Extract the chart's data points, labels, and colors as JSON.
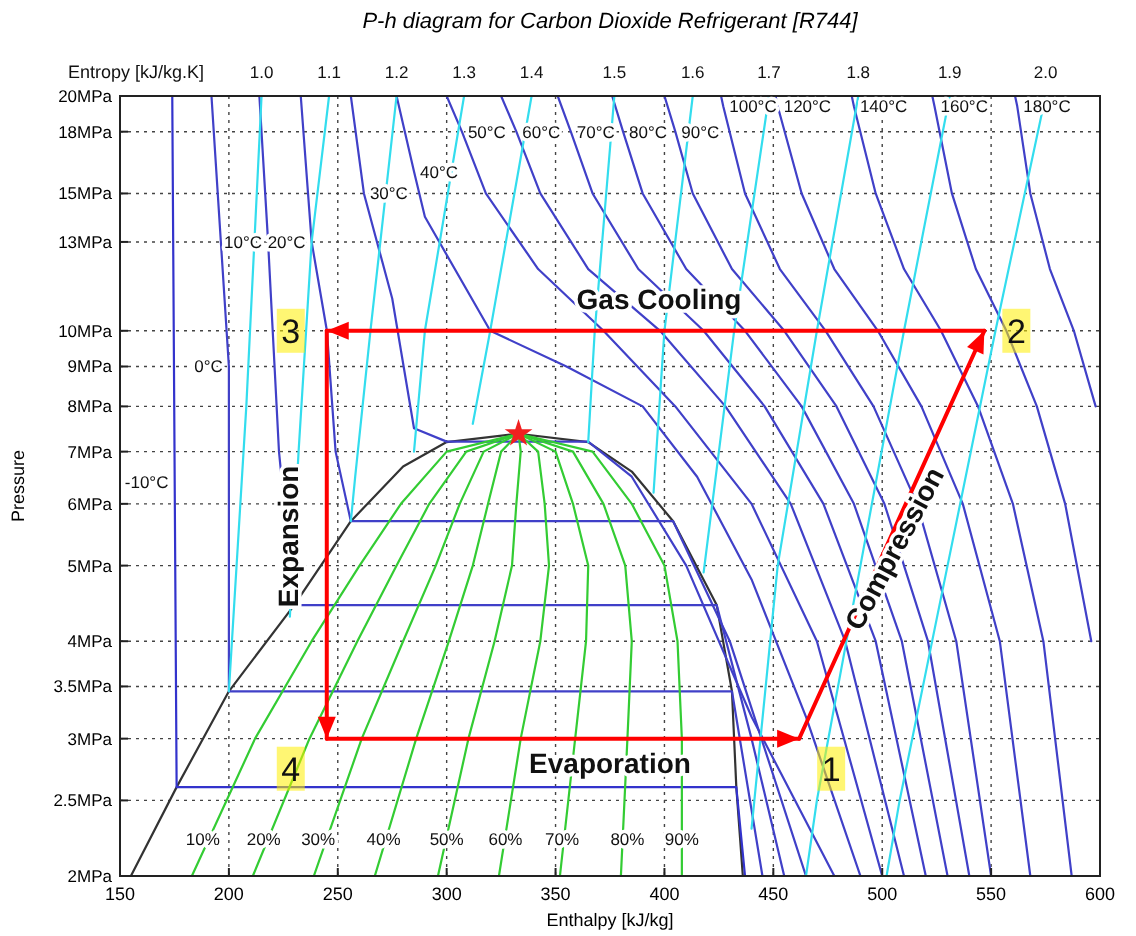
{
  "chart_data": {
    "type": "line",
    "title": "P-h diagram for Carbon Dioxide Refrigerant [R744]",
    "xlabel": "Enthalpy [kJ/kg]",
    "ylabel": "Pressure",
    "xlim": [
      150,
      600
    ],
    "xticks": [
      150,
      200,
      250,
      300,
      350,
      400,
      450,
      500,
      550,
      600
    ],
    "ylim": [
      2,
      20
    ],
    "log": "y",
    "grid": true,
    "yticks": [
      {
        "value": 2,
        "label": "2MPa"
      },
      {
        "value": 2.5,
        "label": "2.5MPa"
      },
      {
        "value": 3,
        "label": "3MPa"
      },
      {
        "value": 3.5,
        "label": "3.5MPa"
      },
      {
        "value": 4,
        "label": "4MPa"
      },
      {
        "value": 5,
        "label": "5MPa"
      },
      {
        "value": 6,
        "label": "6MPa"
      },
      {
        "value": 7,
        "label": "7MPa"
      },
      {
        "value": 8,
        "label": "8MPa"
      },
      {
        "value": 9,
        "label": "9MPa"
      },
      {
        "value": 10,
        "label": "10MPa"
      },
      {
        "value": 13,
        "label": "13MPa"
      },
      {
        "value": 15,
        "label": "15MPa"
      },
      {
        "value": 18,
        "label": "18MPa"
      },
      {
        "value": 20,
        "label": "20MPa"
      }
    ],
    "series": [
      {
        "color": "#333333",
        "x": [
          155,
          176,
          200,
          230,
          256,
          280,
          300,
          333,
          365,
          385,
          404,
          424,
          431,
          433,
          436
        ],
        "values": [
          2,
          2.6,
          3.45,
          4.45,
          5.7,
          6.7,
          7.2,
          7.38,
          7.2,
          6.6,
          5.7,
          4.45,
          3.45,
          2.6,
          2
        ]
      },
      {
        "color": "#3333cc",
        "x": [
          174,
          176,
          433,
          437
        ],
        "values": [
          20,
          2.6,
          2.6,
          2
        ]
      },
      {
        "color": "#4040c8",
        "x": [
          192,
          200,
          200,
          431,
          445
        ],
        "values": [
          20,
          9,
          3.45,
          3.45,
          2
        ]
      },
      {
        "color": "#4040c8",
        "x": [
          214,
          218,
          223,
          230,
          424,
          440,
          455
        ],
        "values": [
          20,
          13,
          7,
          4.45,
          4.45,
          3,
          2
        ]
      },
      {
        "color": "#4040c8",
        "x": [
          233,
          238,
          245,
          249,
          256,
          404,
          430,
          465
        ],
        "values": [
          20,
          13,
          10,
          7,
          5.7,
          5.7,
          4,
          2
        ]
      },
      {
        "color": "#4040c8",
        "x": [
          256,
          262,
          275,
          285,
          300,
          365,
          385,
          410,
          440,
          478
        ],
        "values": [
          20,
          15,
          11,
          7.5,
          7.21,
          7.21,
          6.5,
          5,
          3.2,
          2
        ]
      },
      {
        "color": "#4040c8",
        "x": [
          277,
          285,
          290,
          320,
          355,
          390,
          415,
          440,
          465,
          490
        ],
        "values": [
          20,
          16,
          14,
          10,
          9,
          8,
          6.5,
          4.8,
          3.2,
          2
        ]
      },
      {
        "color": "#4040c8",
        "x": [
          300,
          307,
          318,
          342,
          372,
          405,
          440,
          470,
          500
        ],
        "values": [
          20,
          18,
          15,
          12,
          10,
          8,
          6,
          4,
          2
        ]
      },
      {
        "color": "#4040c8",
        "x": [
          325,
          332,
          343,
          365,
          398,
          428,
          458,
          483,
          510
        ],
        "values": [
          20,
          18,
          15,
          12,
          10,
          8,
          6,
          4,
          2
        ]
      },
      {
        "color": "#4040c8",
        "x": [
          351,
          357,
          367,
          388,
          418,
          446,
          473,
          497,
          520
        ],
        "values": [
          20,
          18,
          15,
          12,
          10,
          8,
          6,
          4,
          2
        ]
      },
      {
        "color": "#4040c8",
        "x": [
          376,
          381,
          390,
          410,
          437,
          463,
          487,
          509,
          530
        ],
        "values": [
          20,
          18,
          15,
          12,
          10,
          8,
          6,
          4,
          2
        ]
      },
      {
        "color": "#4040c8",
        "x": [
          400,
          405,
          413,
          431,
          455,
          479,
          501,
          521,
          540
        ],
        "values": [
          20,
          18,
          15,
          12,
          10,
          8,
          6,
          4,
          2
        ]
      },
      {
        "color": "#4040c8",
        "x": [
          426,
          427,
          437,
          453,
          474,
          496,
          516,
          534,
          550
        ],
        "values": [
          20,
          19.4,
          15,
          12,
          10,
          8,
          6,
          4,
          2
        ]
      },
      {
        "color": "#4040c8",
        "x": [
          451,
          452,
          463,
          478,
          498,
          518,
          537,
          554,
          568
        ],
        "values": [
          20,
          19.4,
          15,
          12,
          10,
          8,
          6,
          4,
          2
        ]
      },
      {
        "color": "#4040c8",
        "x": [
          486,
          487,
          497,
          510,
          527,
          544,
          560,
          574,
          587
        ],
        "values": [
          20,
          19.4,
          15,
          12,
          10,
          8,
          6,
          4,
          2
        ]
      },
      {
        "color": "#4040c8",
        "x": [
          523,
          524,
          532,
          543,
          557,
          571,
          584,
          596
        ],
        "values": [
          20,
          19.4,
          15,
          12,
          10,
          8,
          6,
          4
        ]
      },
      {
        "color": "#4040c8",
        "x": [
          561,
          562,
          568,
          577,
          588,
          598
        ],
        "values": [
          20,
          19.4,
          15,
          12,
          10,
          8
        ]
      },
      {
        "color": "#33ddee",
        "x": [
          215,
          208,
          200
        ],
        "values": [
          20,
          8,
          3.45
        ]
      },
      {
        "color": "#33ddee",
        "x": [
          246,
          238,
          232,
          228
        ],
        "values": [
          20,
          13,
          7,
          4.3
        ]
      },
      {
        "color": "#33ddee",
        "x": [
          277,
          265,
          258,
          256
        ],
        "values": [
          20,
          10,
          6.5,
          5.7
        ]
      },
      {
        "color": "#33ddee",
        "x": [
          308,
          290,
          285
        ],
        "values": [
          20,
          10,
          7
        ]
      },
      {
        "color": "#33ddee",
        "x": [
          339,
          320,
          312
        ],
        "values": [
          20,
          10,
          7.6
        ]
      },
      {
        "color": "#33ddee",
        "x": [
          377,
          368,
          365
        ],
        "values": [
          20,
          10,
          7.2
        ]
      },
      {
        "color": "#33ddee",
        "x": [
          413,
          400,
          395
        ],
        "values": [
          20,
          10,
          6.2
        ]
      },
      {
        "color": "#33ddee",
        "x": [
          448,
          432,
          418
        ],
        "values": [
          20,
          10,
          4.9
        ]
      },
      {
        "color": "#33ddee",
        "x": [
          489,
          470,
          452,
          440
        ],
        "values": [
          20,
          10,
          5,
          2.3
        ]
      },
      {
        "color": "#33ddee",
        "x": [
          531,
          510,
          490,
          470,
          465
        ],
        "values": [
          20,
          10,
          5,
          2.5,
          2
        ]
      },
      {
        "color": "#33ddee",
        "x": [
          575,
          552,
          530,
          508,
          502
        ],
        "values": [
          20,
          10,
          5,
          2.5,
          2
        ]
      },
      {
        "color": "#33cc33",
        "x": [
          183,
          212,
          238,
          260,
          279,
          300,
          333
        ],
        "values": [
          2,
          3,
          4,
          5,
          6,
          7,
          7.38
        ]
      },
      {
        "color": "#33cc33",
        "x": [
          211,
          237,
          259,
          277,
          292,
          309,
          333
        ],
        "values": [
          2,
          3,
          4,
          5,
          6,
          7,
          7.38
        ]
      },
      {
        "color": "#33cc33",
        "x": [
          239,
          261,
          280,
          295,
          306,
          317,
          333
        ],
        "values": [
          2,
          3,
          4,
          5,
          6,
          7,
          7.38
        ]
      },
      {
        "color": "#33cc33",
        "x": [
          267,
          286,
          301,
          312,
          319,
          325,
          333
        ],
        "values": [
          2,
          3,
          4,
          5,
          6,
          7,
          7.38
        ]
      },
      {
        "color": "#33cc33",
        "x": [
          296,
          310,
          322,
          330,
          332,
          334,
          333
        ],
        "values": [
          2,
          3,
          4,
          5,
          6,
          7,
          7.38
        ]
      },
      {
        "color": "#33cc33",
        "x": [
          324,
          334,
          343,
          347,
          345,
          342,
          333
        ],
        "values": [
          2,
          3,
          4,
          5,
          6,
          7,
          7.38
        ]
      },
      {
        "color": "#33cc33",
        "x": [
          352,
          359,
          364,
          365,
          358,
          350,
          333
        ],
        "values": [
          2,
          3,
          4,
          5,
          6,
          7,
          7.38
        ]
      },
      {
        "color": "#33cc33",
        "x": [
          380,
          383,
          385,
          382,
          372,
          358,
          333
        ],
        "values": [
          2,
          3,
          4,
          5,
          6,
          7,
          7.38
        ]
      },
      {
        "color": "#33cc33",
        "x": [
          408,
          408,
          406,
          400,
          385,
          367,
          333
        ],
        "values": [
          2,
          3,
          4,
          5,
          6,
          7,
          7.38
        ]
      },
      {
        "type": "scatter",
        "marker": "star",
        "color": "#f02020",
        "x": [
          333
        ],
        "values": [
          7.38
        ]
      }
    ],
    "annotations": [
      "Entropy [kJ/kg.K]",
      "Compression",
      "Evaporation",
      "Gas Cooling",
      "1",
      "2",
      "3",
      "4",
      {
        "text": "1.0",
        "x": 215,
        "y": 20
      },
      {
        "text": "1.1",
        "x": 246,
        "y": 20
      },
      {
        "text": "1.2",
        "x": 277,
        "y": 20
      },
      {
        "text": "1.3",
        "x": 308,
        "y": 20
      },
      {
        "text": "1.4",
        "x": 339,
        "y": 20
      },
      {
        "text": "1.5",
        "x": 377,
        "y": 20
      },
      {
        "text": "1.6",
        "x": 413,
        "y": 20
      },
      {
        "text": "1.7",
        "x": 448,
        "y": 20
      },
      {
        "text": "1.8",
        "x": 489,
        "y": 20
      },
      {
        "text": "1.9",
        "x": 531,
        "y": 20
      },
      {
        "text": "2.0",
        "x": 575,
        "y": 20
      },
      {
        "text": "-10°C",
        "x": 175,
        "y": 6.4
      },
      {
        "text": "0°C",
        "x": 200,
        "y": 9
      },
      {
        "text": "10°C",
        "x": 218,
        "y": 13
      },
      {
        "text": "20°C",
        "x": 238,
        "y": 13
      },
      {
        "text": "30°C",
        "x": 262,
        "y": 15
      },
      {
        "text": "40°C",
        "x": 285,
        "y": 16
      },
      {
        "text": "50°C",
        "x": 307,
        "y": 18
      },
      {
        "text": "60°C",
        "x": 332,
        "y": 18
      },
      {
        "text": "70°C",
        "x": 357,
        "y": 18
      },
      {
        "text": "80°C",
        "x": 381,
        "y": 18
      },
      {
        "text": "90°C",
        "x": 405,
        "y": 18
      },
      {
        "text": "100°C",
        "x": 427,
        "y": 19.4
      },
      {
        "text": "120°C",
        "x": 452,
        "y": 19.4
      },
      {
        "text": "140°C",
        "x": 487,
        "y": 19.4
      },
      {
        "text": "160°C",
        "x": 524,
        "y": 19.4
      },
      {
        "text": "180°C",
        "x": 562,
        "y": 19.4
      },
      {
        "text": "10%",
        "x": 188,
        "y": 2.23
      },
      {
        "text": "20%",
        "x": 216,
        "y": 2.23
      },
      {
        "text": "30%",
        "x": 241,
        "y": 2.23
      },
      {
        "text": "40%",
        "x": 271,
        "y": 2.23
      },
      {
        "text": "50%",
        "x": 300,
        "y": 2.23
      },
      {
        "text": "60%",
        "x": 327,
        "y": 2.23
      },
      {
        "text": "70%",
        "x": 353,
        "y": 2.23
      },
      {
        "text": "80%",
        "x": 383,
        "y": 2.23
      },
      {
        "text": "90%",
        "x": 408,
        "y": 2.23
      },
      {
        "text": "Expansion",
        "x": 227,
        "y": 5.45
      }
    ]
  }
}
